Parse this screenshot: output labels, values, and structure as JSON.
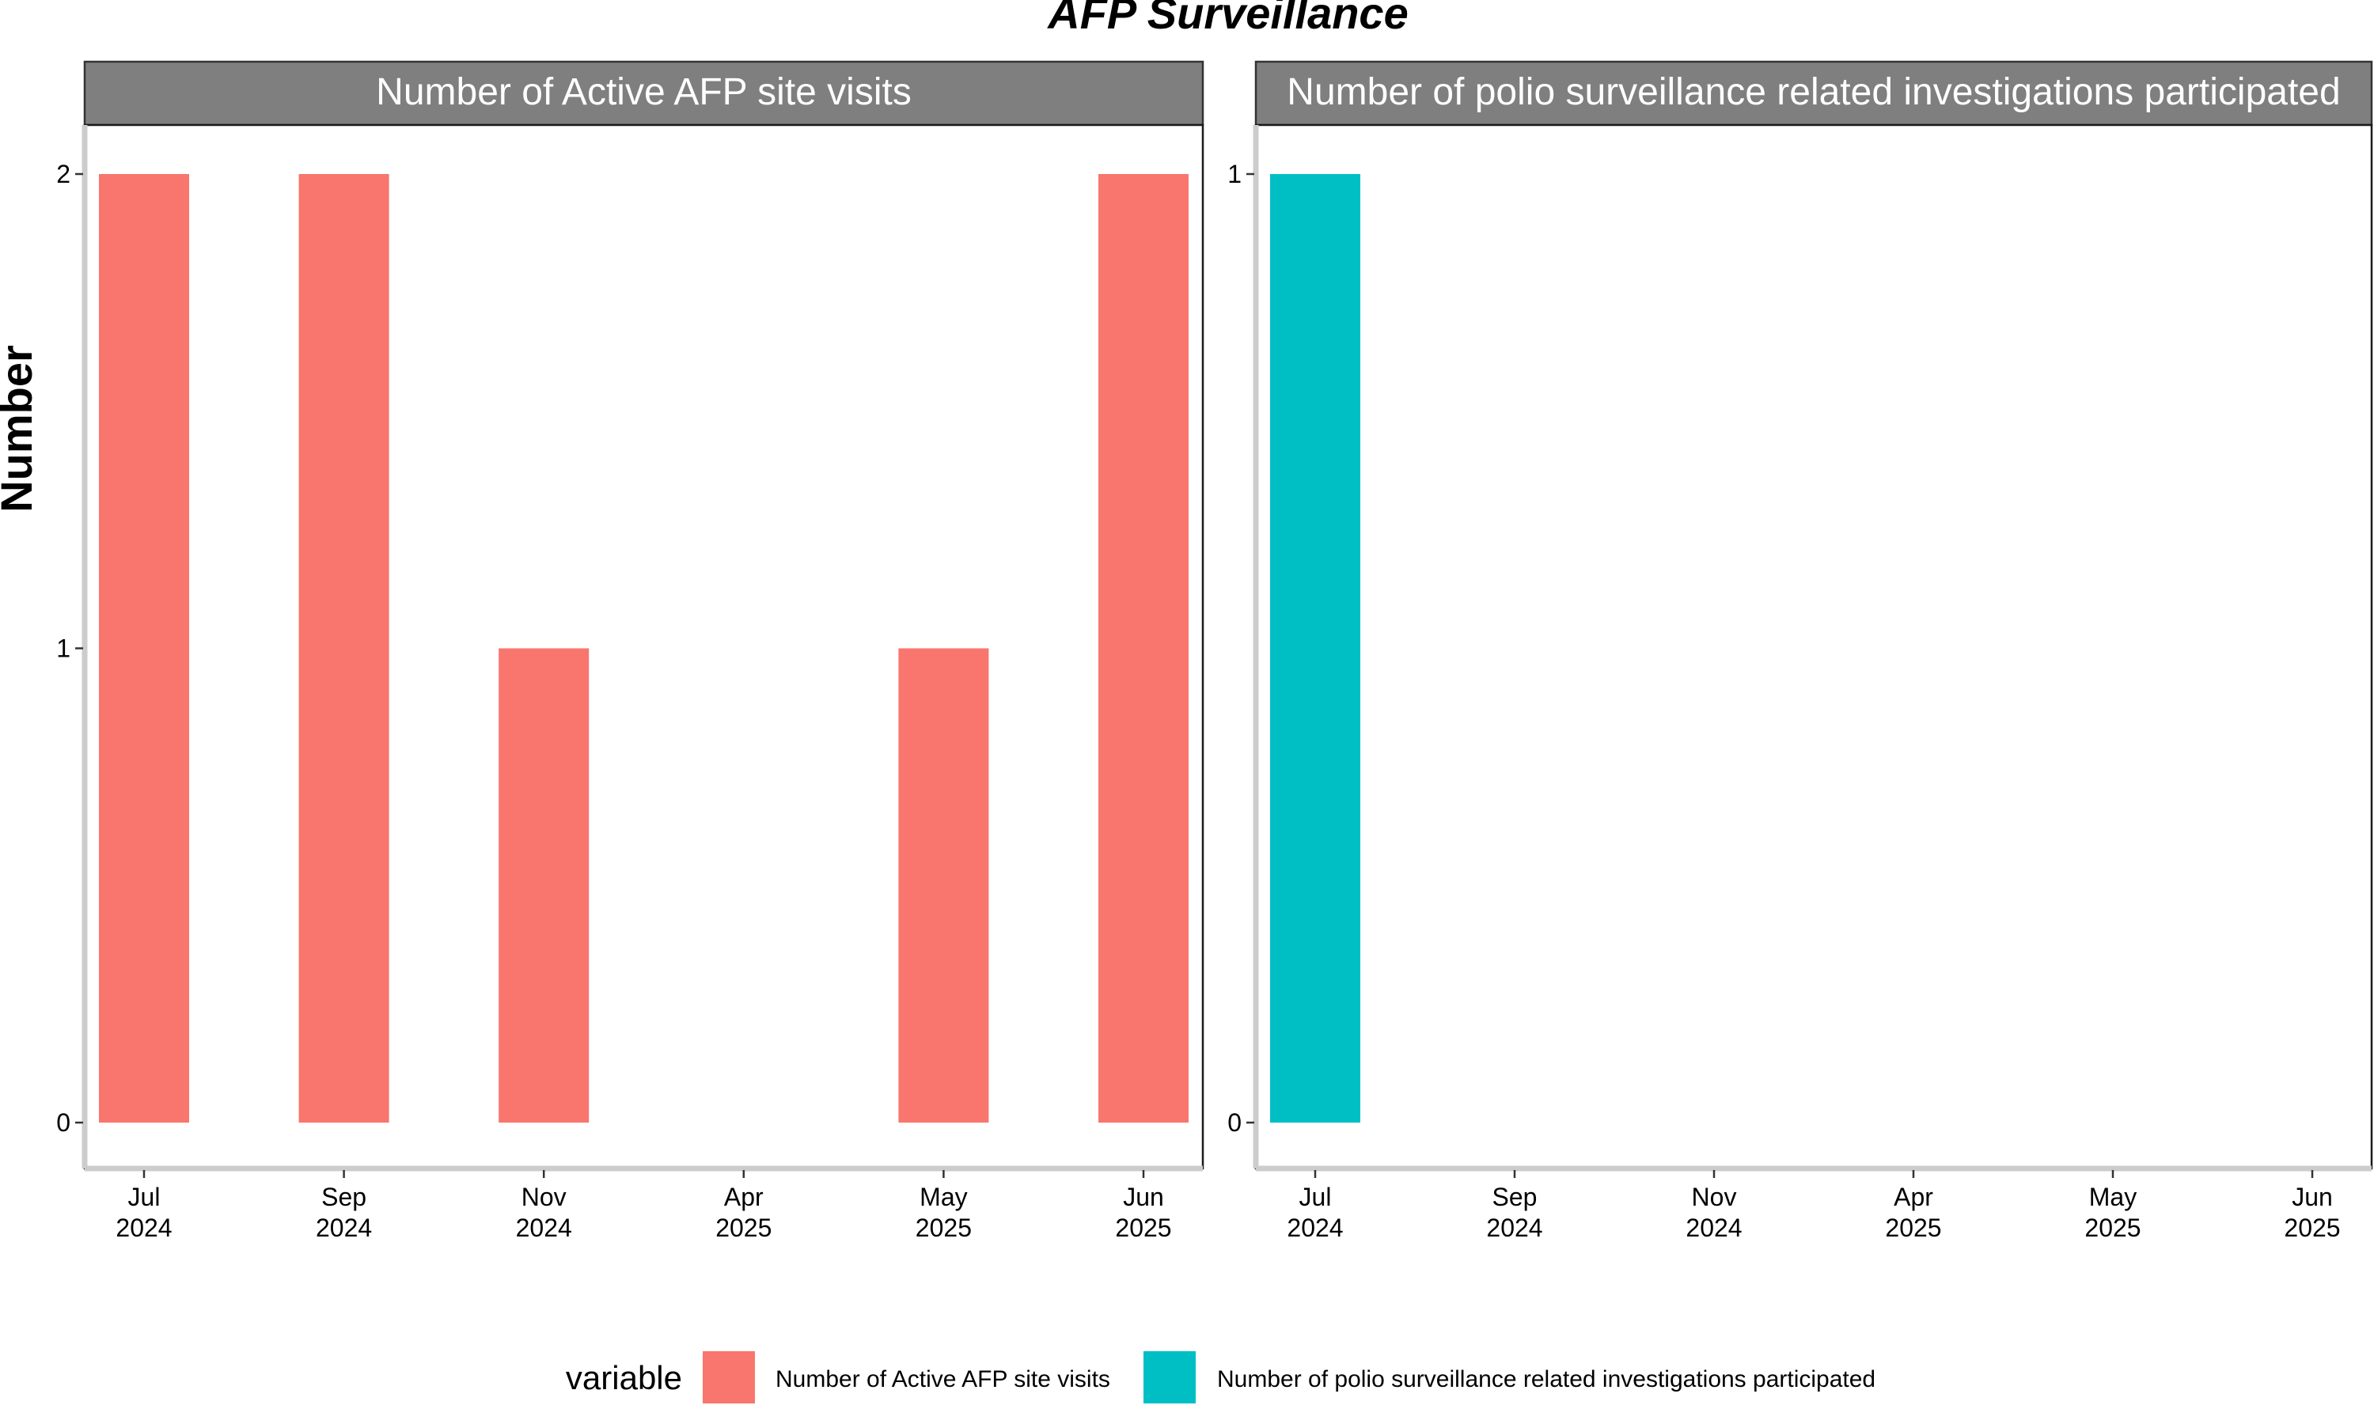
{
  "chart_data": {
    "type": "bar",
    "title": "AFP Surveillance",
    "ylabel": "Number",
    "xlabel": "",
    "x_ticks": [
      {
        "month": "Jul",
        "year": "2024"
      },
      {
        "month": "Sep",
        "year": "2024"
      },
      {
        "month": "Nov",
        "year": "2024"
      },
      {
        "month": "Apr",
        "year": "2025"
      },
      {
        "month": "May",
        "year": "2025"
      },
      {
        "month": "Jun",
        "year": "2025"
      }
    ],
    "categories": [
      "Jul 2024",
      "Sep 2024",
      "Nov 2024",
      "Apr 2025",
      "May 2025",
      "Jun 2025"
    ],
    "panels": [
      {
        "strip_label": "Number of Active AFP site visits",
        "series": "Number of Active AFP site visits",
        "color": "#F8766D",
        "values": [
          2,
          2,
          1,
          0,
          1,
          2
        ],
        "ylim": [
          0,
          2
        ],
        "y_ticks": [
          0,
          1,
          2
        ]
      },
      {
        "strip_label": "Number of polio surveillance related investigations participated",
        "series": "Number of polio surveillance related investigations participated",
        "color": "#00BFC4",
        "values": [
          1,
          0,
          0,
          0,
          0,
          0
        ],
        "ylim": [
          0,
          1
        ],
        "y_ticks": [
          0,
          1
        ]
      }
    ],
    "legend": {
      "title": "variable",
      "position": "bottom",
      "items": [
        {
          "label": "Number of Active AFP site visits",
          "color": "#F8766D"
        },
        {
          "label": "Number of polio surveillance related investigations participated",
          "color": "#00BFC4"
        }
      ]
    },
    "grid": false
  }
}
